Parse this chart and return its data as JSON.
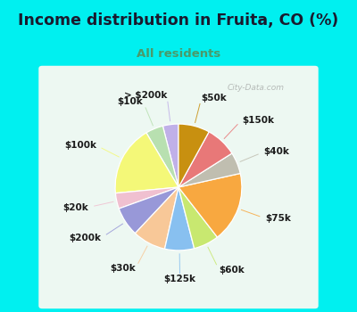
{
  "title": "Income distribution in Fruita, CO (%)",
  "subtitle": "All residents",
  "title_color": "#1a1a2e",
  "subtitle_color": "#4a9a6a",
  "bg_color": "#00f0f0",
  "chart_bg": "#e8f5ee",
  "watermark": "City-Data.com",
  "labels": [
    "> $200k",
    "$10k",
    "$100k",
    "$20k",
    "$200k",
    "$30k",
    "$125k",
    "$60k",
    "$75k",
    "$40k",
    "$150k",
    "$50k"
  ],
  "values": [
    4.0,
    4.5,
    18.0,
    4.0,
    7.5,
    8.5,
    7.5,
    6.5,
    18.0,
    5.5,
    8.0,
    8.0
  ],
  "colors": [
    "#c0b0e8",
    "#b8e0b0",
    "#f4f878",
    "#f0c0d0",
    "#9898d8",
    "#f8c898",
    "#88c0f0",
    "#c8e870",
    "#f8a840",
    "#c0beb0",
    "#e87878",
    "#c89010"
  ],
  "startangle": 90,
  "label_fontsize": 7.5,
  "title_fontsize": 12.5,
  "subtitle_fontsize": 9.5
}
